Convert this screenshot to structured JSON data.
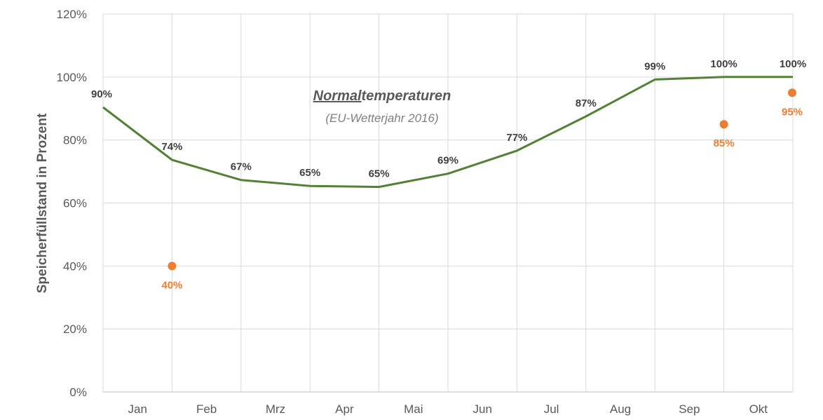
{
  "chart_data": {
    "type": "line",
    "ylabel": "Speicherfüllstand in Prozent",
    "ylim": [
      0,
      120
    ],
    "yticks": [
      0,
      20,
      40,
      60,
      80,
      100,
      120
    ],
    "ytick_labels": [
      "0%",
      "20%",
      "40%",
      "60%",
      "80%",
      "100%",
      "120%"
    ],
    "month_labels": [
      "Jan",
      "Feb",
      "Mrz",
      "Apr",
      "Mai",
      "Jun",
      "Jul",
      "Aug",
      "Sep",
      "Okt"
    ],
    "annotation": {
      "title_underlined": "Normal",
      "title_rest": "temperaturen",
      "subtitle": "(EU-Wetterjahr 2016)"
    },
    "grid": true,
    "series": [
      {
        "type": "line",
        "color": "#538135",
        "x": [
          0,
          1,
          2,
          3,
          4,
          5,
          6,
          7,
          8,
          9,
          10
        ],
        "values": [
          90.4,
          73.7,
          67.3,
          65.4,
          65.1,
          69.3,
          76.6,
          87.5,
          99.2,
          100,
          100
        ],
        "labels": [
          "90%",
          "74%",
          "67%",
          "65%",
          "65%",
          "69%",
          "77%",
          "87%",
          "99%",
          "100%",
          "100%"
        ]
      },
      {
        "type": "scatter",
        "color": "#ED7D31",
        "x": [
          1,
          9,
          10
        ],
        "values": [
          40,
          85,
          95
        ],
        "labels": [
          "40%",
          "85%",
          "95%"
        ]
      }
    ]
  }
}
